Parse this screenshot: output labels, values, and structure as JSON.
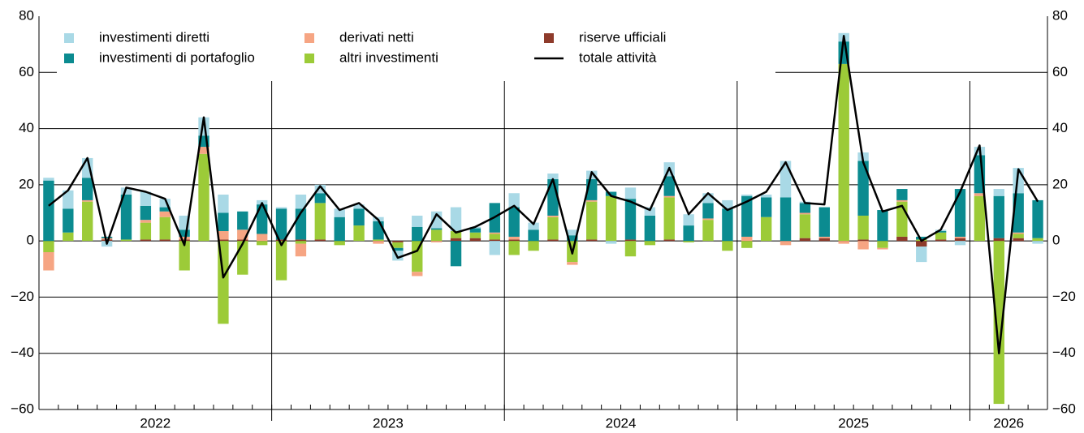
{
  "chart_data": {
    "type": "bar",
    "categories": [
      "2022",
      null,
      null,
      null,
      null,
      null,
      null,
      null,
      null,
      null,
      null,
      null,
      "2023",
      null,
      null,
      null,
      null,
      null,
      null,
      null,
      null,
      null,
      null,
      null,
      "2024",
      null,
      null,
      null,
      null,
      null,
      null,
      null,
      null,
      null,
      null,
      null,
      "2025",
      null,
      null,
      null,
      null,
      null,
      null,
      null,
      null,
      null,
      null,
      null,
      "2026",
      null,
      null,
      null
    ],
    "series": [
      {
        "name": "investimenti diretti",
        "color": "#a9d9e6",
        "values": [
          1,
          6.5,
          7,
          -2,
          2.5,
          5,
          3,
          5,
          6.5,
          6.5,
          0,
          1.5,
          0.5,
          5,
          3,
          3,
          1.5,
          1.5,
          -3.5,
          4,
          6,
          8.5,
          0.5,
          -5,
          5,
          2.5,
          2,
          2,
          3,
          -1,
          4,
          3,
          5,
          4,
          3.5,
          3,
          0.5,
          1,
          13,
          0.5,
          0,
          3,
          3,
          0,
          0,
          -5.5,
          0.5,
          -1.5,
          3,
          2.5,
          9,
          -1
        ]
      },
      {
        "name": "investimenti di portafoglio",
        "color": "#0b8b90",
        "values": [
          21.5,
          8.5,
          8,
          0.5,
          16,
          5,
          1.5,
          2.5,
          4,
          6.5,
          6.5,
          10.5,
          11,
          11,
          3.5,
          8.5,
          6,
          6.5,
          -1,
          5,
          0.5,
          -9,
          1.5,
          10.5,
          10.5,
          4,
          13,
          2,
          7.5,
          1.5,
          14.5,
          9,
          7,
          5.5,
          5.5,
          11.5,
          14.5,
          7,
          15.5,
          3.5,
          10.5,
          8,
          19.5,
          11,
          4,
          1,
          0.5,
          17,
          13.5,
          15,
          14,
          13.5
        ]
      },
      {
        "name": "derivati netti",
        "color": "#f6a583",
        "values": [
          -6.5,
          0,
          0.5,
          0.5,
          0,
          1,
          2,
          1,
          2.5,
          3,
          3.5,
          2.5,
          0,
          -4.5,
          0,
          0,
          0,
          -1,
          0,
          -1.5,
          -0.5,
          0,
          0,
          0.5,
          1,
          0,
          0.5,
          -1,
          0.5,
          0,
          0,
          0,
          0.5,
          0,
          0.5,
          0,
          1.5,
          0,
          -1.5,
          0.5,
          0.5,
          -1,
          -3,
          -0.5,
          0.5,
          0,
          0,
          0.5,
          1,
          0,
          0.5,
          0
        ]
      },
      {
        "name": "altri investimenti",
        "color": "#9ccb38",
        "values": [
          -4,
          3,
          14,
          0,
          0.5,
          6,
          8,
          -10.5,
          31,
          -29.5,
          -12,
          -1.5,
          -14,
          -1,
          13,
          -1.5,
          5.5,
          0.5,
          -2,
          -11,
          4,
          2.5,
          2,
          2,
          -5,
          -3.5,
          8,
          -7.5,
          13.5,
          16,
          -5.5,
          -1.5,
          15,
          -0.5,
          7.5,
          -3.5,
          -2.5,
          8.5,
          0,
          8.5,
          0,
          63,
          8.5,
          -2.5,
          12.5,
          0.5,
          2.5,
          0,
          16,
          -58,
          1.5,
          1
        ]
      },
      {
        "name": "riserve ufficiali",
        "color": "#8e3b2b",
        "values": [
          0,
          0,
          0,
          0.5,
          0,
          0.5,
          0.5,
          0.5,
          0,
          0.5,
          0.5,
          0,
          0.5,
          0.5,
          0.5,
          0,
          0,
          0,
          -0.5,
          0,
          0,
          1,
          1,
          0.5,
          0.5,
          0,
          0.5,
          0,
          0.5,
          0,
          0.5,
          0,
          0.5,
          0,
          0,
          0,
          0,
          0,
          0,
          1,
          1,
          0,
          0.5,
          0,
          1.5,
          -2,
          0.5,
          1,
          0,
          1,
          1,
          0
        ]
      },
      {
        "name": "totale attività",
        "color": "#000000",
        "type": "line",
        "values": [
          12.5,
          18,
          29.5,
          -1,
          19,
          17.5,
          15,
          -1.5,
          44,
          -13,
          -1,
          13.5,
          -1.5,
          10,
          19.5,
          11,
          13.5,
          7.5,
          -6,
          -3.5,
          9.5,
          3,
          5,
          8.5,
          12.5,
          6,
          22,
          -4.5,
          24.5,
          16,
          14,
          11,
          26,
          9.5,
          17,
          11,
          14,
          17.5,
          28,
          13.5,
          13,
          73,
          28,
          10.5,
          12.5,
          0,
          4,
          17.5,
          34,
          -40,
          25.5,
          14
        ]
      }
    ],
    "ylim": [
      -60,
      80
    ],
    "yticks": [
      {
        "value": -60,
        "label": "−60"
      },
      {
        "value": -40,
        "label": "−40"
      },
      {
        "value": -20,
        "label": "−20"
      },
      0,
      20,
      40,
      60,
      80
    ],
    "grid": true
  }
}
